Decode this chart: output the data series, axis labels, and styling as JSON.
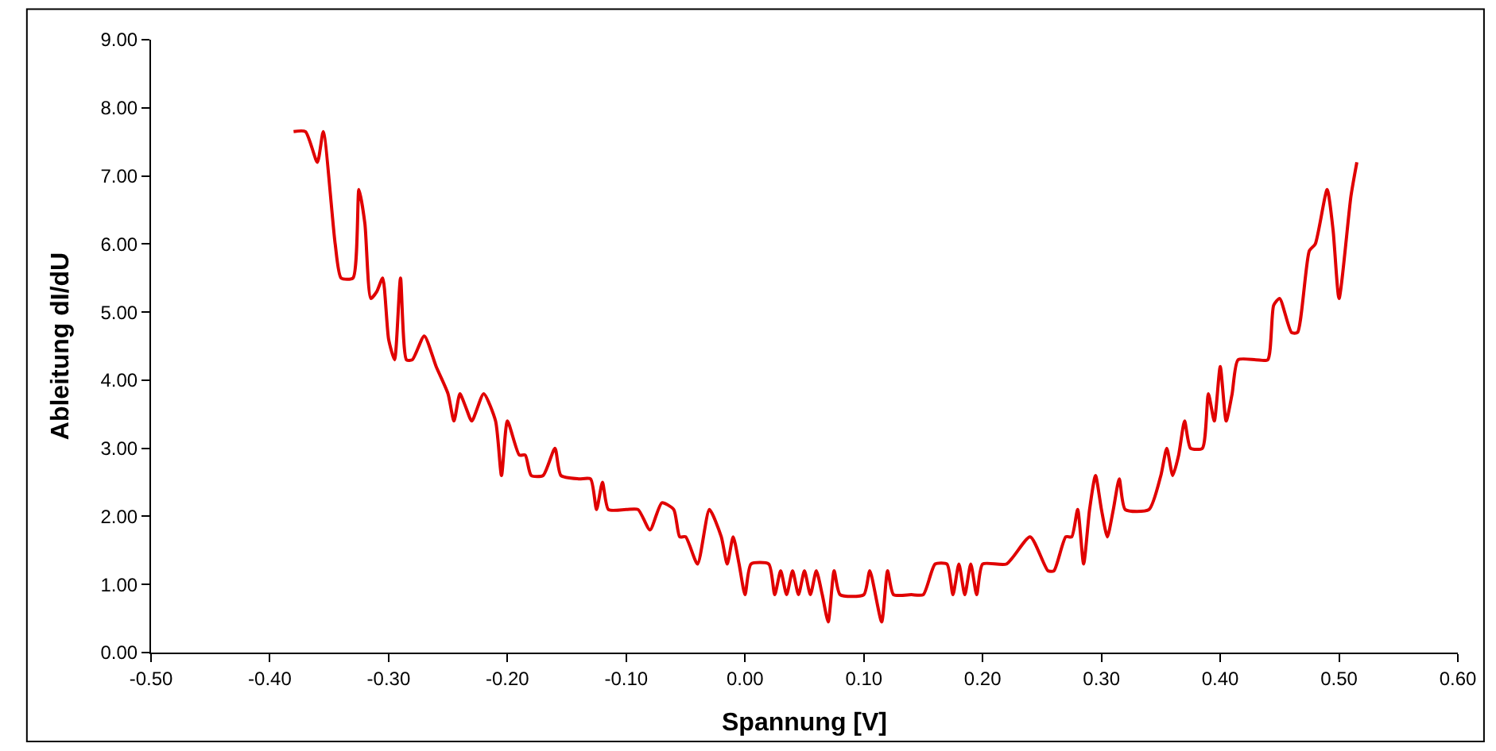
{
  "chart_data": {
    "type": "line",
    "xlabel": "Spannung [V]",
    "ylabel": "Ableitung dI/dU",
    "marker": "none",
    "line_style": "solid",
    "xlim": [
      -0.5,
      0.6
    ],
    "ylim": [
      0,
      9
    ],
    "xticks": [
      {
        "value": -0.5,
        "label": "-0.50"
      },
      {
        "value": -0.4,
        "label": "-0.40"
      },
      {
        "value": -0.3,
        "label": "-0.30"
      },
      {
        "value": -0.2,
        "label": "-0.20"
      },
      {
        "value": -0.1,
        "label": "-0.10"
      },
      {
        "value": 0,
        "label": "0.00"
      },
      {
        "value": 0.1,
        "label": "0.10"
      },
      {
        "value": 0.2,
        "label": "0.20"
      },
      {
        "value": 0.3,
        "label": "0.30"
      },
      {
        "value": 0.4,
        "label": "0.40"
      },
      {
        "value": 0.5,
        "label": "0.50"
      },
      {
        "value": 0.6,
        "label": "0.60"
      }
    ],
    "yticks": [
      {
        "value": 0,
        "label": "0.00"
      },
      {
        "value": 1,
        "label": "1.00"
      },
      {
        "value": 2,
        "label": "2.00"
      },
      {
        "value": 3,
        "label": "3.00"
      },
      {
        "value": 4,
        "label": "4.00"
      },
      {
        "value": 5,
        "label": "5.00"
      },
      {
        "value": 6,
        "label": "6.00"
      },
      {
        "value": 7,
        "label": "7.00"
      },
      {
        "value": 8,
        "label": "8.00"
      },
      {
        "value": 9,
        "label": "9.00"
      }
    ],
    "series": [
      {
        "color": "#e00000",
        "x": [
          -0.38,
          -0.37,
          -0.36,
          -0.355,
          -0.345,
          -0.34,
          -0.33,
          -0.325,
          -0.32,
          -0.315,
          -0.31,
          -0.305,
          -0.3,
          -0.295,
          -0.29,
          -0.285,
          -0.28,
          -0.27,
          -0.26,
          -0.25,
          -0.245,
          -0.24,
          -0.235,
          -0.23,
          -0.22,
          -0.21,
          -0.205,
          -0.2,
          -0.19,
          -0.185,
          -0.18,
          -0.17,
          -0.16,
          -0.155,
          -0.14,
          -0.13,
          -0.125,
          -0.12,
          -0.115,
          -0.1,
          -0.09,
          -0.08,
          -0.07,
          -0.06,
          -0.055,
          -0.05,
          -0.04,
          -0.03,
          -0.02,
          -0.015,
          -0.01,
          -0.005,
          0.0,
          0.005,
          0.02,
          0.025,
          0.03,
          0.035,
          0.04,
          0.045,
          0.05,
          0.055,
          0.06,
          0.065,
          0.07,
          0.075,
          0.08,
          0.1,
          0.105,
          0.115,
          0.12,
          0.125,
          0.14,
          0.15,
          0.16,
          0.17,
          0.175,
          0.18,
          0.185,
          0.19,
          0.195,
          0.2,
          0.22,
          0.24,
          0.255,
          0.26,
          0.27,
          0.275,
          0.28,
          0.285,
          0.29,
          0.295,
          0.3,
          0.305,
          0.31,
          0.315,
          0.32,
          0.34,
          0.35,
          0.355,
          0.36,
          0.365,
          0.37,
          0.375,
          0.385,
          0.39,
          0.395,
          0.4,
          0.405,
          0.41,
          0.415,
          0.43,
          0.44,
          0.445,
          0.45,
          0.46,
          0.465,
          0.475,
          0.48,
          0.49,
          0.495,
          0.5,
          0.51,
          0.515
        ],
        "values": [
          7.65,
          7.65,
          7.2,
          7.65,
          6.0,
          5.5,
          5.5,
          6.8,
          6.3,
          5.2,
          5.3,
          5.5,
          4.6,
          4.3,
          5.5,
          4.3,
          4.3,
          4.65,
          4.2,
          3.8,
          3.4,
          3.8,
          3.6,
          3.4,
          3.8,
          3.4,
          2.6,
          3.4,
          2.9,
          2.9,
          2.6,
          2.6,
          3.0,
          2.6,
          2.55,
          2.55,
          2.1,
          2.5,
          2.1,
          2.1,
          2.1,
          1.8,
          2.2,
          2.1,
          1.7,
          1.7,
          1.3,
          2.1,
          1.7,
          1.3,
          1.7,
          1.3,
          0.85,
          1.3,
          1.3,
          0.85,
          1.2,
          0.85,
          1.2,
          0.85,
          1.2,
          0.85,
          1.2,
          0.85,
          0.45,
          1.2,
          0.85,
          0.85,
          1.2,
          0.45,
          1.2,
          0.85,
          0.85,
          0.85,
          1.3,
          1.3,
          0.85,
          1.3,
          0.85,
          1.3,
          0.85,
          1.3,
          1.3,
          1.7,
          1.2,
          1.2,
          1.7,
          1.7,
          2.1,
          1.3,
          2.1,
          2.6,
          2.1,
          1.7,
          2.1,
          2.55,
          2.1,
          2.1,
          2.6,
          3.0,
          2.6,
          2.9,
          3.4,
          3.0,
          3.0,
          3.8,
          3.4,
          4.2,
          3.4,
          3.8,
          4.3,
          4.3,
          4.3,
          5.1,
          5.2,
          4.7,
          4.7,
          5.9,
          6.0,
          6.8,
          6.2,
          5.2,
          6.7,
          7.2
        ]
      }
    ]
  }
}
